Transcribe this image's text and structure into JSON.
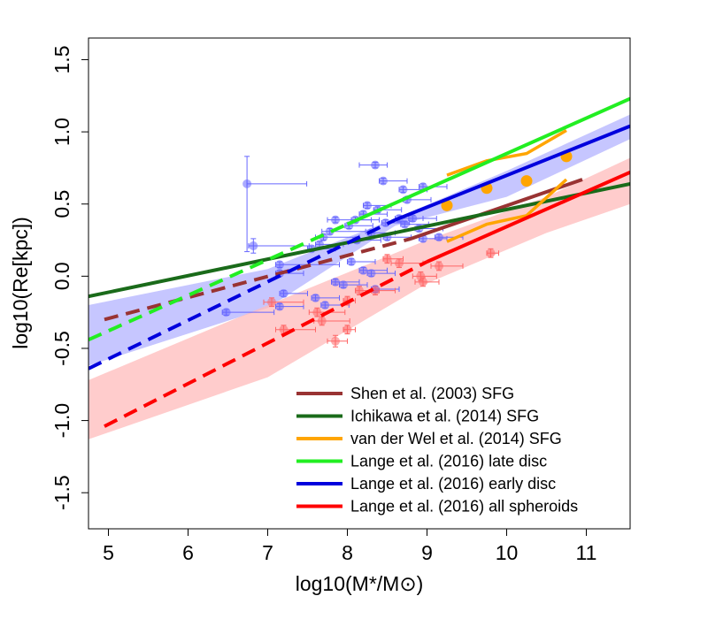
{
  "chart_data": {
    "type": "scatter",
    "title": "",
    "xlabel": "log10(M*/M⊙)",
    "ylabel": "log10(Re[kpc])",
    "xlim": [
      4.75,
      11.55
    ],
    "ylim": [
      -1.75,
      1.65
    ],
    "x_ticks": [
      5,
      6,
      7,
      8,
      9,
      10,
      11
    ],
    "y_ticks": [
      -1.5,
      -1.0,
      -0.5,
      0.0,
      0.5,
      1.0,
      1.5
    ],
    "x_tick_labels": [
      "5",
      "6",
      "7",
      "8",
      "9",
      "10",
      "11"
    ],
    "y_tick_labels": [
      "-1.5",
      "-1.0",
      "-0.5",
      "0.0",
      "0.5",
      "1.0",
      "1.5"
    ],
    "grid": false,
    "legend_position": "bottom-right",
    "colors": {
      "shen": "#993333",
      "ichikawa": "#1a6b1a",
      "vanderwel": "#ffa500",
      "late_disc": "#22ee22",
      "early_disc": "#0000dd",
      "spheroids": "#ff0000",
      "blue_band": "#b3b3ff",
      "red_band": "#ffbbbb",
      "blue_points": "#6666ff",
      "red_points": "#ff6666"
    },
    "series": [
      {
        "name": "Shen et al. (2003) SFG",
        "key": "shen",
        "dashed": {
          "x": [
            4.95,
            8.8
          ],
          "y": [
            -0.3,
            0.26
          ]
        },
        "solid": {
          "x": [
            8.8,
            10.95
          ],
          "y": [
            0.26,
            0.67
          ]
        }
      },
      {
        "name": "Ichikawa et al. (2014) SFG",
        "key": "ichikawa",
        "solid": {
          "x": [
            4.75,
            11.55
          ],
          "y": [
            -0.14,
            0.64
          ]
        }
      },
      {
        "name": "van der Wel et al. (2014) SFG",
        "key": "vanderwel",
        "lines": [
          {
            "x": [
              9.25,
              9.75,
              10.25,
              10.75
            ],
            "y": [
              0.7,
              0.8,
              0.85,
              1.01
            ]
          },
          {
            "x": [
              9.25,
              9.75,
              10.25,
              10.75
            ],
            "y": [
              0.24,
              0.36,
              0.42,
              0.67
            ]
          }
        ],
        "points": {
          "x": [
            9.25,
            9.75,
            10.25,
            10.75
          ],
          "y": [
            0.49,
            0.61,
            0.66,
            0.83
          ]
        }
      },
      {
        "name": "Lange et al. (2016) late disc",
        "key": "late_disc",
        "dashed": {
          "x": [
            4.75,
            8.0
          ],
          "y": [
            -0.44,
            0.36
          ]
        },
        "solid": {
          "x": [
            8.0,
            11.55
          ],
          "y": [
            0.36,
            1.23
          ]
        }
      },
      {
        "name": "Lange et al. (2016) early disc",
        "key": "early_disc",
        "dashed": {
          "x": [
            4.75,
            8.6
          ],
          "y": [
            -0.64,
            0.39
          ]
        },
        "solid": {
          "x": [
            8.6,
            11.55
          ],
          "y": [
            0.39,
            1.04
          ]
        },
        "band_upper": {
          "x": [
            4.75,
            7.0,
            8.6,
            10.0,
            11.55
          ],
          "y": [
            -0.2,
            0.05,
            0.4,
            0.73,
            1.12
          ]
        },
        "band_lower": {
          "x": [
            4.75,
            7.0,
            8.6,
            10.0,
            11.55
          ],
          "y": [
            -0.62,
            -0.22,
            0.35,
            0.55,
            0.95
          ]
        }
      },
      {
        "name": "Lange et al. (2016) all spheroids",
        "key": "spheroids",
        "dashed": {
          "x": [
            4.95,
            9.0
          ],
          "y": [
            -1.04,
            0.1
          ]
        },
        "solid": {
          "x": [
            9.0,
            11.55
          ],
          "y": [
            0.1,
            0.72
          ]
        },
        "band_upper": {
          "x": [
            4.75,
            7.0,
            9.0,
            10.5,
            11.55
          ],
          "y": [
            -0.72,
            -0.2,
            0.25,
            0.55,
            0.82
          ]
        },
        "band_lower": {
          "x": [
            4.75,
            7.0,
            9.0,
            10.5,
            11.55
          ],
          "y": [
            -1.13,
            -0.7,
            -0.05,
            0.3,
            0.5
          ]
        }
      }
    ],
    "blue_points": [
      {
        "x": 6.74,
        "y": 0.64,
        "xerr": [
          0,
          0.75
        ],
        "yerr": [
          0.47,
          0.19
        ]
      },
      {
        "x": 6.82,
        "y": 0.21,
        "xerr": [
          0.06,
          0.7
        ],
        "yerr": [
          0.05,
          0.05
        ]
      },
      {
        "x": 6.48,
        "y": -0.25,
        "xerr": [
          0.05,
          0.6
        ],
        "yerr": [
          0.02,
          0.02
        ]
      },
      {
        "x": 7.15,
        "y": 0.08,
        "xerr": [
          0.05,
          0.75
        ],
        "yerr": [
          0.02,
          0.02
        ]
      },
      {
        "x": 7.15,
        "y": 0.02,
        "xerr": [
          0.05,
          0.3
        ],
        "yerr": [
          0.02,
          0.02
        ]
      },
      {
        "x": 7.2,
        "y": -0.12,
        "xerr": [
          0.05,
          0.3
        ],
        "yerr": [
          0.02,
          0.02
        ]
      },
      {
        "x": 7.15,
        "y": -0.21,
        "xerr": [
          0.05,
          0.3
        ],
        "yerr": [
          0.02,
          0.02
        ]
      },
      {
        "x": 7.55,
        "y": 0.19,
        "xerr": [
          0.05,
          0.3
        ],
        "yerr": [
          0.02,
          0.02
        ]
      },
      {
        "x": 7.7,
        "y": 0.27,
        "xerr": [
          0.1,
          0.45
        ],
        "yerr": [
          0.02,
          0.02
        ]
      },
      {
        "x": 7.78,
        "y": 0.31,
        "xerr": [
          0.1,
          0.45
        ],
        "yerr": [
          0.02,
          0.02
        ]
      },
      {
        "x": 7.85,
        "y": 0.39,
        "xerr": [
          0.1,
          0.45
        ],
        "yerr": [
          0.02,
          0.02
        ]
      },
      {
        "x": 8.02,
        "y": 0.35,
        "xerr": [
          0.05,
          0.3
        ],
        "yerr": [
          0.02,
          0.02
        ]
      },
      {
        "x": 8.1,
        "y": 0.39,
        "xerr": [
          0.05,
          0.3
        ],
        "yerr": [
          0.02,
          0.02
        ]
      },
      {
        "x": 8.12,
        "y": 0.25,
        "xerr": [
          0.05,
          0.3
        ],
        "yerr": [
          0.02,
          0.02
        ]
      },
      {
        "x": 8.2,
        "y": 0.43,
        "xerr": [
          0.05,
          0.3
        ],
        "yerr": [
          0.02,
          0.02
        ]
      },
      {
        "x": 8.25,
        "y": 0.49,
        "xerr": [
          0.05,
          0.3
        ],
        "yerr": [
          0.02,
          0.02
        ]
      },
      {
        "x": 8.38,
        "y": 0.46,
        "xerr": [
          0.05,
          0.3
        ],
        "yerr": [
          0.02,
          0.02
        ]
      },
      {
        "x": 8.3,
        "y": 0.3,
        "xerr": [
          0.05,
          0.3
        ],
        "yerr": [
          0.02,
          0.02
        ]
      },
      {
        "x": 8.35,
        "y": 0.77,
        "xerr": [
          0.2,
          0.15
        ],
        "yerr": [
          0.02,
          0.02
        ]
      },
      {
        "x": 8.45,
        "y": 0.66,
        "xerr": [
          0.05,
          0.3
        ],
        "yerr": [
          0.02,
          0.02
        ]
      },
      {
        "x": 8.48,
        "y": 0.37,
        "xerr": [
          0.05,
          0.3
        ],
        "yerr": [
          0.02,
          0.02
        ]
      },
      {
        "x": 8.5,
        "y": 0.27,
        "xerr": [
          0.05,
          0.3
        ],
        "yerr": [
          0.02,
          0.02
        ]
      },
      {
        "x": 8.65,
        "y": 0.4,
        "xerr": [
          0.05,
          0.3
        ],
        "yerr": [
          0.02,
          0.02
        ]
      },
      {
        "x": 8.72,
        "y": 0.36,
        "xerr": [
          0.05,
          0.3
        ],
        "yerr": [
          0.02,
          0.02
        ]
      },
      {
        "x": 8.75,
        "y": 0.53,
        "xerr": [
          0.05,
          0.3
        ],
        "yerr": [
          0.02,
          0.02
        ]
      },
      {
        "x": 8.82,
        "y": 0.4,
        "xerr": [
          0.05,
          0.3
        ],
        "yerr": [
          0.02,
          0.02
        ]
      },
      {
        "x": 8.7,
        "y": 0.6,
        "xerr": [
          0.05,
          0.3
        ],
        "yerr": [
          0.02,
          0.02
        ]
      },
      {
        "x": 8.95,
        "y": 0.62,
        "xerr": [
          0.05,
          0.3
        ],
        "yerr": [
          0.02,
          0.02
        ]
      },
      {
        "x": 8.9,
        "y": 0.33,
        "xerr": [
          0.05,
          0.3
        ],
        "yerr": [
          0.02,
          0.02
        ]
      },
      {
        "x": 8.95,
        "y": 0.26,
        "xerr": [
          0.05,
          0.3
        ],
        "yerr": [
          0.02,
          0.02
        ]
      },
      {
        "x": 9.15,
        "y": 0.27,
        "xerr": [
          0.05,
          0.3
        ],
        "yerr": [
          0.02,
          0.02
        ]
      },
      {
        "x": 8.2,
        "y": 0.04,
        "xerr": [
          0.05,
          0.3
        ],
        "yerr": [
          0.02,
          0.02
        ]
      },
      {
        "x": 8.3,
        "y": 0.02,
        "xerr": [
          0.05,
          0.3
        ],
        "yerr": [
          0.02,
          0.02
        ]
      },
      {
        "x": 7.85,
        "y": -0.04,
        "xerr": [
          0.05,
          0.3
        ],
        "yerr": [
          0.02,
          0.02
        ]
      },
      {
        "x": 7.95,
        "y": -0.06,
        "xerr": [
          0.05,
          0.3
        ],
        "yerr": [
          0.02,
          0.02
        ]
      },
      {
        "x": 8.35,
        "y": -0.09,
        "xerr": [
          0.05,
          0.3
        ],
        "yerr": [
          0.02,
          0.02
        ]
      },
      {
        "x": 7.6,
        "y": -0.15,
        "xerr": [
          0.05,
          0.3
        ],
        "yerr": [
          0.02,
          0.02
        ]
      },
      {
        "x": 7.72,
        "y": -0.2,
        "xerr": [
          0.05,
          0.3
        ],
        "yerr": [
          0.02,
          0.02
        ]
      },
      {
        "x": 8.05,
        "y": 0.1,
        "xerr": [
          0.05,
          0.3
        ],
        "yerr": [
          0.02,
          0.02
        ]
      },
      {
        "x": 7.65,
        "y": 0.22,
        "xerr": [
          0.05,
          0.3
        ],
        "yerr": [
          0.02,
          0.02
        ]
      }
    ],
    "red_points": [
      {
        "x": 7.05,
        "y": -0.18,
        "xerr": [
          0.1,
          0.4
        ],
        "yerr": [
          0.03,
          0.03
        ]
      },
      {
        "x": 7.2,
        "y": -0.37,
        "xerr": [
          0.1,
          0.4
        ],
        "yerr": [
          0.03,
          0.03
        ]
      },
      {
        "x": 7.62,
        "y": -0.25,
        "xerr": [
          0.1,
          0.35
        ],
        "yerr": [
          0.03,
          0.03
        ]
      },
      {
        "x": 7.68,
        "y": -0.31,
        "xerr": [
          0.1,
          0.35
        ],
        "yerr": [
          0.03,
          0.03
        ]
      },
      {
        "x": 7.85,
        "y": -0.45,
        "xerr": [
          0.1,
          0.15
        ],
        "yerr": [
          0.04,
          0.04
        ]
      },
      {
        "x": 8.0,
        "y": -0.37,
        "xerr": [
          0.05,
          0.1
        ],
        "yerr": [
          0.03,
          0.03
        ]
      },
      {
        "x": 8.0,
        "y": -0.17,
        "xerr": [
          0.05,
          0.1
        ],
        "yerr": [
          0.03,
          0.03
        ]
      },
      {
        "x": 8.15,
        "y": -0.1,
        "xerr": [
          0.05,
          0.25
        ],
        "yerr": [
          0.03,
          0.03
        ]
      },
      {
        "x": 8.35,
        "y": -0.1,
        "xerr": [
          0.05,
          0.25
        ],
        "yerr": [
          0.03,
          0.03
        ]
      },
      {
        "x": 8.5,
        "y": 0.12,
        "xerr": [
          0.05,
          0.2
        ],
        "yerr": [
          0.03,
          0.03
        ]
      },
      {
        "x": 8.65,
        "y": 0.09,
        "xerr": [
          0.1,
          0.3
        ],
        "yerr": [
          0.03,
          0.03
        ]
      },
      {
        "x": 8.92,
        "y": 0.0,
        "xerr": [
          0.1,
          0.2
        ],
        "yerr": [
          0.03,
          0.03
        ]
      },
      {
        "x": 8.95,
        "y": -0.04,
        "xerr": [
          0.1,
          0.2
        ],
        "yerr": [
          0.03,
          0.03
        ]
      },
      {
        "x": 9.15,
        "y": 0.07,
        "xerr": [
          0.1,
          0.3
        ],
        "yerr": [
          0.03,
          0.03
        ]
      },
      {
        "x": 9.8,
        "y": 0.16,
        "xerr": [
          0.05,
          0.1
        ],
        "yerr": [
          0.03,
          0.03
        ]
      }
    ]
  }
}
